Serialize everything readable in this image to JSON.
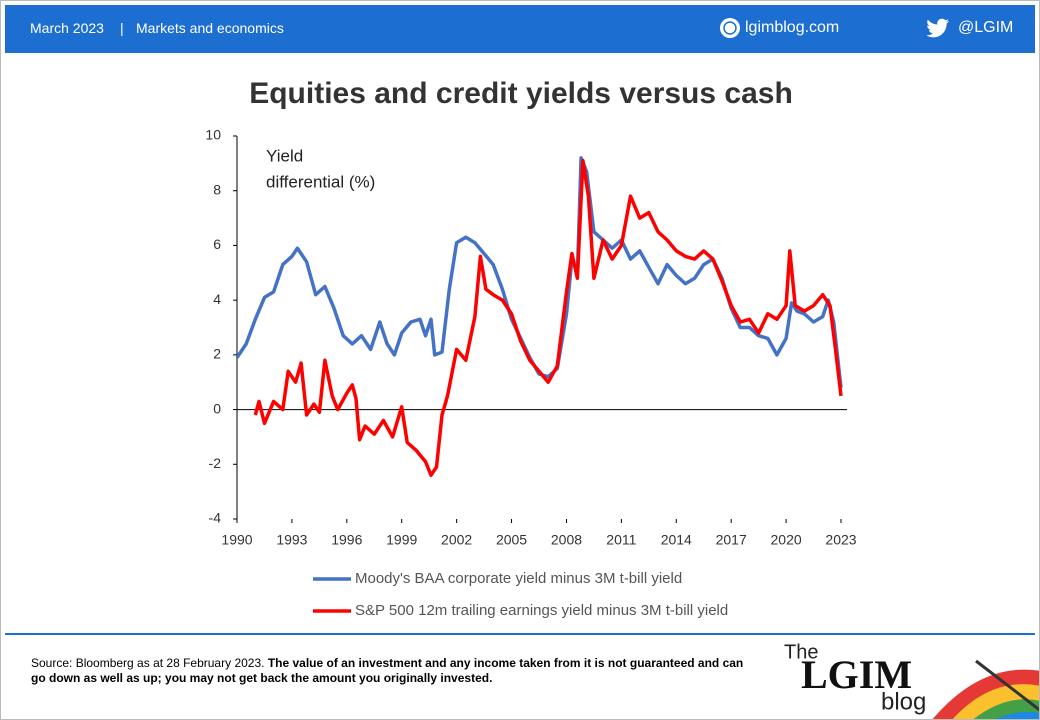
{
  "header": {
    "date": "March 2023",
    "section": "Markets and economics",
    "site": "lgimblog.com",
    "twitter": "@LGIM"
  },
  "chart_data": {
    "type": "line",
    "title": "Equities and credit yields versus cash",
    "ylabel": [
      "Yield",
      "differential (%)"
    ],
    "xlim": [
      1990,
      2023
    ],
    "xticks": [
      1990,
      1993,
      1996,
      1999,
      2002,
      2005,
      2008,
      2011,
      2014,
      2017,
      2020,
      2023
    ],
    "ylim": [
      -4,
      10
    ],
    "yticks": [
      -4,
      -2,
      0,
      2,
      4,
      6,
      8,
      10
    ],
    "legend": "bottom",
    "series": [
      {
        "name": "Moody's BAA corporate yield minus 3M t-bill yield",
        "color": "#4472c4",
        "x": [
          1990,
          1990.5,
          1991,
          1991.5,
          1992,
          1992.5,
          1993,
          1993.3,
          1993.8,
          1994.3,
          1994.8,
          1995.3,
          1995.8,
          1996.3,
          1996.8,
          1997.3,
          1997.8,
          1998.2,
          1998.6,
          1999,
          1999.5,
          2000,
          2000.3,
          2000.6,
          2000.8,
          2001.2,
          2001.6,
          2002,
          2002.5,
          2003,
          2003.5,
          2004,
          2004.5,
          2005,
          2005.5,
          2006,
          2006.5,
          2007,
          2007.5,
          2008,
          2008.3,
          2008.6,
          2008.8,
          2009.1,
          2009.5,
          2010,
          2010.5,
          2011,
          2011.5,
          2012,
          2012.5,
          2013,
          2013.5,
          2014,
          2014.5,
          2015,
          2015.5,
          2016,
          2016.5,
          2017,
          2017.5,
          2018,
          2018.5,
          2019,
          2019.5,
          2020,
          2020.3,
          2020.6,
          2021,
          2021.5,
          2022,
          2022.3,
          2022.6,
          2023
        ],
        "values": [
          1.9,
          2.4,
          3.3,
          4.1,
          4.3,
          5.3,
          5.6,
          5.9,
          5.4,
          4.2,
          4.5,
          3.7,
          2.7,
          2.4,
          2.7,
          2.2,
          3.2,
          2.4,
          2.0,
          2.8,
          3.2,
          3.3,
          2.7,
          3.3,
          2.0,
          2.1,
          4.4,
          6.1,
          6.3,
          6.1,
          5.7,
          5.3,
          4.4,
          3.3,
          2.6,
          1.9,
          1.3,
          1.2,
          1.5,
          3.5,
          5.5,
          5.0,
          9.2,
          8.7,
          6.5,
          6.2,
          5.9,
          6.2,
          5.5,
          5.8,
          5.2,
          4.6,
          5.3,
          4.9,
          4.6,
          4.8,
          5.3,
          5.5,
          4.8,
          3.7,
          3.0,
          3.0,
          2.7,
          2.6,
          2.0,
          2.6,
          3.9,
          3.6,
          3.5,
          3.2,
          3.4,
          4.0,
          3.2,
          0.8
        ]
      },
      {
        "name": "S&P 500 12m trailing earnings yield minus 3M t-bill yield",
        "color": "#ff0000",
        "x": [
          1991,
          1991.2,
          1991.5,
          1992,
          1992.5,
          1992.8,
          1993.2,
          1993.5,
          1993.8,
          1994.2,
          1994.5,
          1994.8,
          1995.2,
          1995.5,
          1996,
          1996.3,
          1996.5,
          1996.7,
          1997,
          1997.5,
          1998,
          1998.5,
          1999,
          1999.3,
          1999.8,
          2000.3,
          2000.6,
          2000.9,
          2001.2,
          2001.5,
          2002,
          2002.5,
          2003,
          2003.3,
          2003.6,
          2004,
          2004.5,
          2005,
          2005.5,
          2006,
          2006.5,
          2007,
          2007.5,
          2008,
          2008.3,
          2008.6,
          2008.9,
          2009.2,
          2009.5,
          2010,
          2010.5,
          2011,
          2011.5,
          2012,
          2012.5,
          2013,
          2013.5,
          2014,
          2014.5,
          2015,
          2015.5,
          2016,
          2016.5,
          2017,
          2017.5,
          2018,
          2018.5,
          2019,
          2019.5,
          2020,
          2020.2,
          2020.5,
          2021,
          2021.5,
          2022,
          2022.4,
          2022.7,
          2023
        ],
        "values": [
          -0.2,
          0.3,
          -0.5,
          0.3,
          0.0,
          1.4,
          1.0,
          1.7,
          -0.2,
          0.2,
          -0.1,
          1.8,
          0.5,
          0.0,
          0.6,
          0.9,
          0.4,
          -1.1,
          -0.6,
          -0.9,
          -0.4,
          -1.0,
          0.1,
          -1.2,
          -1.5,
          -1.9,
          -2.4,
          -2.1,
          -0.2,
          0.5,
          2.2,
          1.8,
          3.4,
          5.6,
          4.4,
          4.2,
          4.0,
          3.5,
          2.5,
          1.8,
          1.4,
          1.0,
          1.6,
          4.3,
          5.7,
          4.8,
          9.1,
          7.8,
          4.8,
          6.2,
          5.5,
          6.0,
          7.8,
          7.0,
          7.2,
          6.5,
          6.2,
          5.8,
          5.6,
          5.5,
          5.8,
          5.5,
          4.7,
          3.8,
          3.2,
          3.3,
          2.8,
          3.5,
          3.3,
          3.8,
          5.8,
          3.8,
          3.6,
          3.8,
          4.2,
          3.8,
          2.2,
          0.5
        ]
      }
    ]
  },
  "footer": {
    "source": "Source: Bloomberg as at 28 February 2023.",
    "disclaimer": "The value of an investment and any income taken from it is not guaranteed and can go down as well as up; you may not get back the amount you originally invested.",
    "logo": {
      "the": "The",
      "brand": "LGIM",
      "blog": "blog"
    }
  }
}
